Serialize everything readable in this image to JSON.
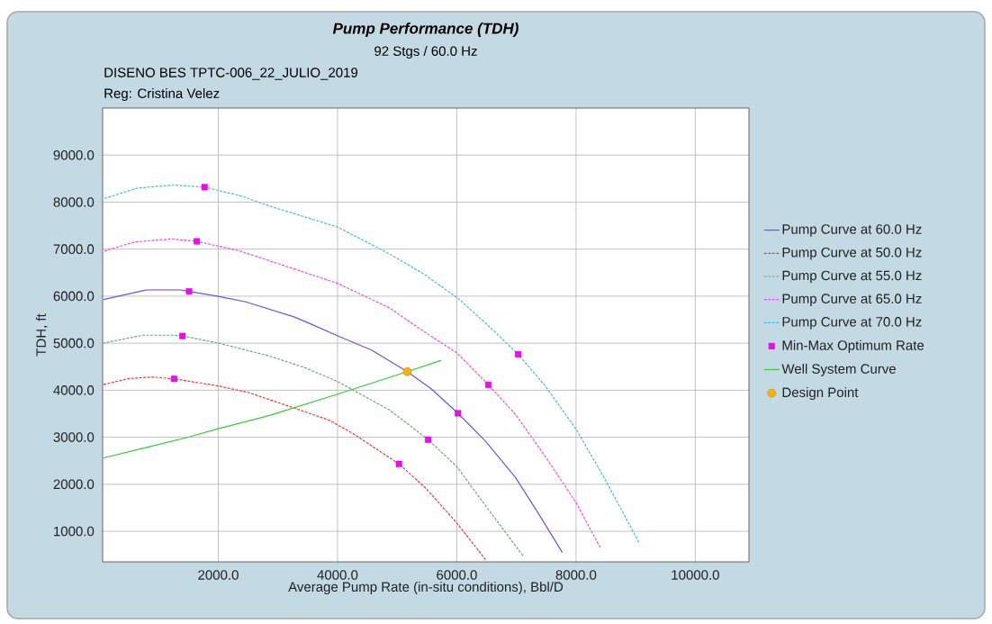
{
  "chart_data": {
    "type": "line",
    "title": "Pump Performance (TDH)",
    "subtitle": "92 Stgs / 60.0 Hz",
    "annotations": [
      "DISENO BES TPTC-006_22_JULIO_2019",
      "Reg: Cristina Velez"
    ],
    "xlabel": "Average Pump Rate (in-situ conditions), Bbl/D",
    "ylabel": "TDH, ft",
    "xlim": [
      60,
      10900
    ],
    "ylim": [
      350,
      10000
    ],
    "xticks": [
      {
        "value": 2000,
        "label": "2000.0"
      },
      {
        "value": 4000,
        "label": "4000.0"
      },
      {
        "value": 6000,
        "label": "6000.0"
      },
      {
        "value": 8000,
        "label": "8000.0"
      },
      {
        "value": 10000,
        "label": "10000.0"
      }
    ],
    "yticks": [
      {
        "value": 1000,
        "label": "1000.0"
      },
      {
        "value": 2000,
        "label": "2000.0"
      },
      {
        "value": 3000,
        "label": "3000.0"
      },
      {
        "value": 4000,
        "label": "4000.0"
      },
      {
        "value": 5000,
        "label": "5000.0"
      },
      {
        "value": 6000,
        "label": "6000.0"
      },
      {
        "value": 7000,
        "label": "7000.0"
      },
      {
        "value": 8000,
        "label": "8000.0"
      },
      {
        "value": 9000,
        "label": "9000.0"
      }
    ],
    "grid": true,
    "legend": "right",
    "marker": "none",
    "series": [
      {
        "name": "Pump Curve at 60.0 Hz",
        "type": "line",
        "color": "#6655ee",
        "line_style": "solid",
        "x": [
          75,
          800,
          1360,
          1510,
          1960,
          2460,
          3270,
          3520,
          4020,
          4570,
          5170,
          5570,
          6020,
          6480,
          6980,
          7380,
          7770
        ],
        "values": [
          5930,
          6134,
          6134,
          6102,
          6006,
          5879,
          5561,
          5427,
          5146,
          4854,
          4395,
          4032,
          3510,
          2917,
          2153,
          1357,
          548
        ]
      },
      {
        "name": "Pump Curve at 50.0 Hz",
        "type": "line",
        "color": "#ff3333",
        "line_style": "dashed",
        "x": [
          75,
          500,
          900,
          1260,
          2010,
          2510,
          3270,
          3870,
          4270,
          5030,
          5470,
          6000,
          6480
        ],
        "values": [
          4121,
          4248,
          4280,
          4242,
          4089,
          3949,
          3624,
          3357,
          3070,
          2433,
          1930,
          1178,
          401
        ]
      },
      {
        "name": "Pump Curve at 55.0 Hz",
        "type": "line",
        "color": "#66aa88",
        "line_style": "dashed",
        "x": [
          60,
          750,
          1260,
          1400,
          2010,
          2860,
          3470,
          4000,
          4870,
          5430,
          5520,
          6000,
          6480,
          7120
        ],
        "values": [
          5000,
          5172,
          5172,
          5153,
          5000,
          4726,
          4471,
          4185,
          3580,
          3038,
          2949,
          2376,
          1548,
          465
        ]
      },
      {
        "name": "Pump Curve at 65.0 Hz",
        "type": "line",
        "color": "#ff44ff",
        "line_style": "dashed",
        "x": [
          90,
          600,
          1210,
          1640,
          2360,
          3120,
          4000,
          4870,
          5270,
          5570,
          6000,
          6530,
          6980,
          7480,
          8000,
          8410
        ],
        "values": [
          6962,
          7153,
          7217,
          7166,
          6962,
          6643,
          6274,
          5752,
          5402,
          5148,
          4796,
          4115,
          3490,
          2599,
          1611,
          643
        ]
      },
      {
        "name": "Pump Curve at 70.0 Hz",
        "type": "line",
        "color": "#44bbee",
        "line_style": "dashed",
        "x": [
          90,
          650,
          1260,
          1770,
          2360,
          2860,
          4000,
          4870,
          5430,
          6000,
          6480,
          7030,
          7480,
          8000,
          8480,
          9060
        ],
        "values": [
          8077,
          8300,
          8363,
          8318,
          8140,
          7917,
          7471,
          6898,
          6484,
          5975,
          5433,
          4764,
          4096,
          3172,
          2121,
          752
        ]
      },
      {
        "name": "Min-Max Optimum Rate",
        "type": "scatter",
        "marker": "square",
        "color": "#ff00ff",
        "x": [
          1510,
          6020,
          1260,
          5030,
          1400,
          5520,
          1640,
          6530,
          1770,
          7030
        ],
        "values": [
          6102,
          3510,
          4242,
          2433,
          5153,
          2949,
          7166,
          4115,
          8318,
          4764
        ]
      },
      {
        "name": "Well System Curve",
        "type": "line",
        "color": "#33cc33",
        "line_style": "solid",
        "x": [
          75,
          800,
          1510,
          2010,
          2860,
          4000,
          5170,
          5740
        ],
        "values": [
          2561,
          2783,
          3006,
          3185,
          3465,
          3917,
          4395,
          4637
        ]
      },
      {
        "name": "Design Point",
        "type": "scatter",
        "marker": "circle",
        "color": "#ffb300",
        "x": [
          5170
        ],
        "values": [
          4395
        ]
      }
    ]
  }
}
